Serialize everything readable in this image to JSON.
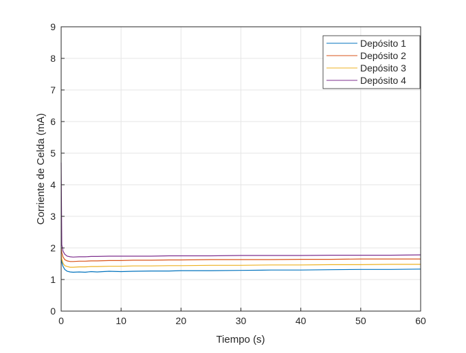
{
  "chart_data": {
    "type": "line",
    "xlabel": "Tiempo (s)",
    "ylabel": "Corriente de Celda (mA)",
    "xlim": [
      0,
      60
    ],
    "ylim": [
      0,
      9
    ],
    "xticks": [
      0,
      10,
      20,
      30,
      40,
      50,
      60
    ],
    "yticks": [
      0,
      1,
      2,
      3,
      4,
      5,
      6,
      7,
      8,
      9
    ],
    "grid": true,
    "legend_position": "top-right",
    "x": [
      0,
      0.1,
      0.3,
      0.6,
      1,
      1.5,
      2,
      3,
      4,
      5,
      6,
      8,
      10,
      12,
      15,
      18,
      20,
      25,
      30,
      35,
      40,
      45,
      50,
      55,
      60
    ],
    "series": [
      {
        "name": "Depósito 1",
        "color": "#0072BD",
        "values": [
          1.65,
          1.55,
          1.42,
          1.32,
          1.26,
          1.24,
          1.23,
          1.24,
          1.23,
          1.25,
          1.24,
          1.26,
          1.25,
          1.26,
          1.27,
          1.27,
          1.28,
          1.28,
          1.29,
          1.3,
          1.3,
          1.31,
          1.32,
          1.32,
          1.33
        ]
      },
      {
        "name": "Depósito 2",
        "color": "#D95319",
        "values": [
          2.0,
          1.85,
          1.72,
          1.63,
          1.59,
          1.57,
          1.57,
          1.58,
          1.58,
          1.59,
          1.59,
          1.6,
          1.6,
          1.61,
          1.61,
          1.62,
          1.62,
          1.63,
          1.63,
          1.63,
          1.64,
          1.64,
          1.65,
          1.65,
          1.65
        ]
      },
      {
        "name": "Depósito 3",
        "color": "#EDB120",
        "values": [
          1.8,
          1.65,
          1.52,
          1.44,
          1.41,
          1.39,
          1.39,
          1.4,
          1.4,
          1.41,
          1.41,
          1.42,
          1.42,
          1.43,
          1.43,
          1.44,
          1.44,
          1.45,
          1.45,
          1.46,
          1.46,
          1.47,
          1.47,
          1.48,
          1.48
        ]
      },
      {
        "name": "Depósito 4",
        "color": "#7E2F8E",
        "values": [
          4.7,
          2.1,
          1.9,
          1.8,
          1.74,
          1.72,
          1.71,
          1.72,
          1.72,
          1.73,
          1.73,
          1.74,
          1.74,
          1.74,
          1.74,
          1.75,
          1.75,
          1.75,
          1.76,
          1.76,
          1.76,
          1.77,
          1.77,
          1.77,
          1.78
        ]
      }
    ]
  }
}
